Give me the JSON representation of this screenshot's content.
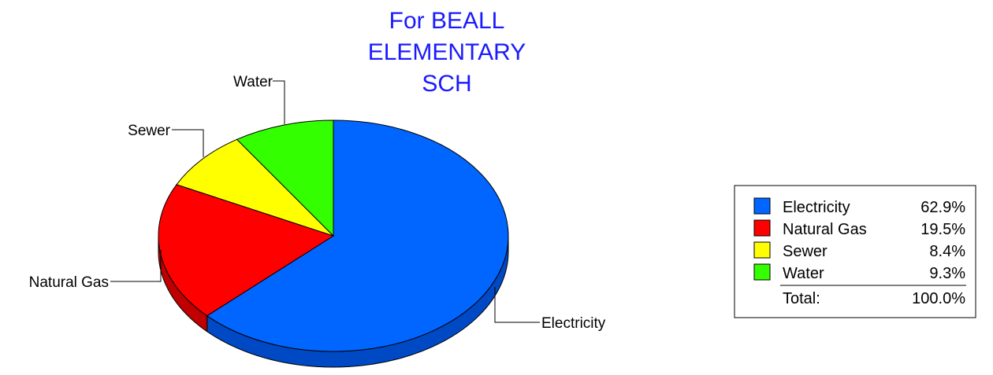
{
  "chart_data": {
    "type": "pie",
    "title_lines": [
      "For BEALL",
      "ELEMENTARY",
      "SCH"
    ],
    "slices": [
      {
        "label": "Electricity",
        "value": 62.9,
        "color": "#0066ff",
        "side_color": "#0049c4"
      },
      {
        "label": "Natural Gas",
        "value": 19.5,
        "color": "#ff0000",
        "side_color": "#c00000"
      },
      {
        "label": "Sewer",
        "value": 8.4,
        "color": "#ffff00",
        "side_color": "#c8c800"
      },
      {
        "label": "Water",
        "value": 9.3,
        "color": "#33ff00",
        "side_color": "#22b800"
      }
    ],
    "legend": {
      "entries": [
        {
          "label": "Electricity",
          "pct": "62.9%"
        },
        {
          "label": "Natural Gas",
          "pct": "19.5%"
        },
        {
          "label": "Sewer",
          "pct": "8.4%"
        },
        {
          "label": "Water",
          "pct": "9.3%"
        }
      ],
      "total_label": "Total:",
      "total_value": "100.0%",
      "placement": "right"
    }
  }
}
